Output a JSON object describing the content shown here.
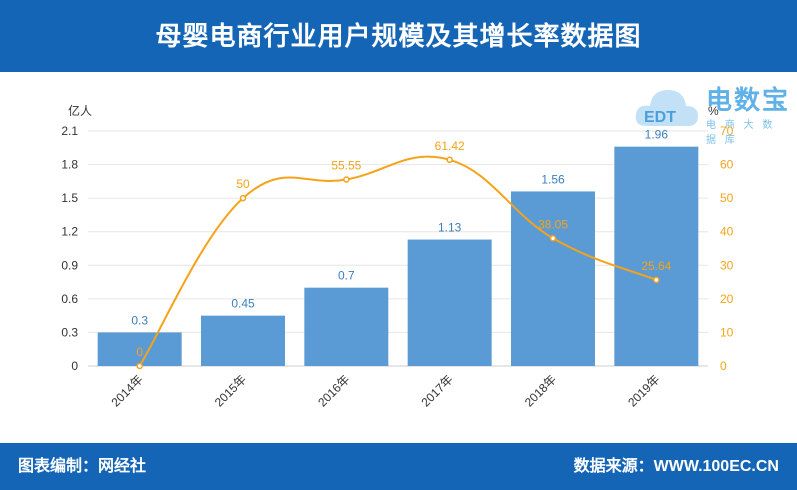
{
  "header": {
    "title": "母婴电商行业用户规模及其增长率数据图"
  },
  "footer": {
    "editor": "图表编制：网经社",
    "source": "数据来源：WWW.100EC.CN"
  },
  "logo": {
    "brand": "电数宝",
    "sub": "电 商 大 数 据 库",
    "mark": "EDT"
  },
  "chart_data": {
    "type": "bar",
    "categories": [
      "2014年",
      "2015年",
      "2016年",
      "2017年",
      "2018年",
      "2019年"
    ],
    "series": [
      {
        "type": "bar",
        "axis": "left",
        "values": [
          0.3,
          0.45,
          0.7,
          1.13,
          1.56,
          1.96
        ],
        "color": "#5b9bd5"
      },
      {
        "type": "line",
        "axis": "right",
        "values": [
          0,
          50,
          55.55,
          61.42,
          38.05,
          25.64
        ],
        "color": "#f5a31a"
      }
    ],
    "ylabel": "亿人",
    "y2label": "%",
    "ylim": [
      0,
      2.1
    ],
    "yticks": [
      "0",
      "0.3",
      "0.6",
      "0.9",
      "1.2",
      "1.5",
      "1.8",
      "2.1"
    ],
    "y2lim": [
      0,
      70
    ],
    "y2ticks": [
      "0",
      "10",
      "20",
      "30",
      "40",
      "50",
      "60",
      "70"
    ],
    "bar_labels": [
      "0.3",
      "0.45",
      "0.7",
      "1.13",
      "1.56",
      "1.96"
    ],
    "line_labels": [
      "0",
      "50",
      "55.55",
      "61.42",
      "38.05",
      "25.64"
    ],
    "grid": true,
    "legend": "none"
  }
}
